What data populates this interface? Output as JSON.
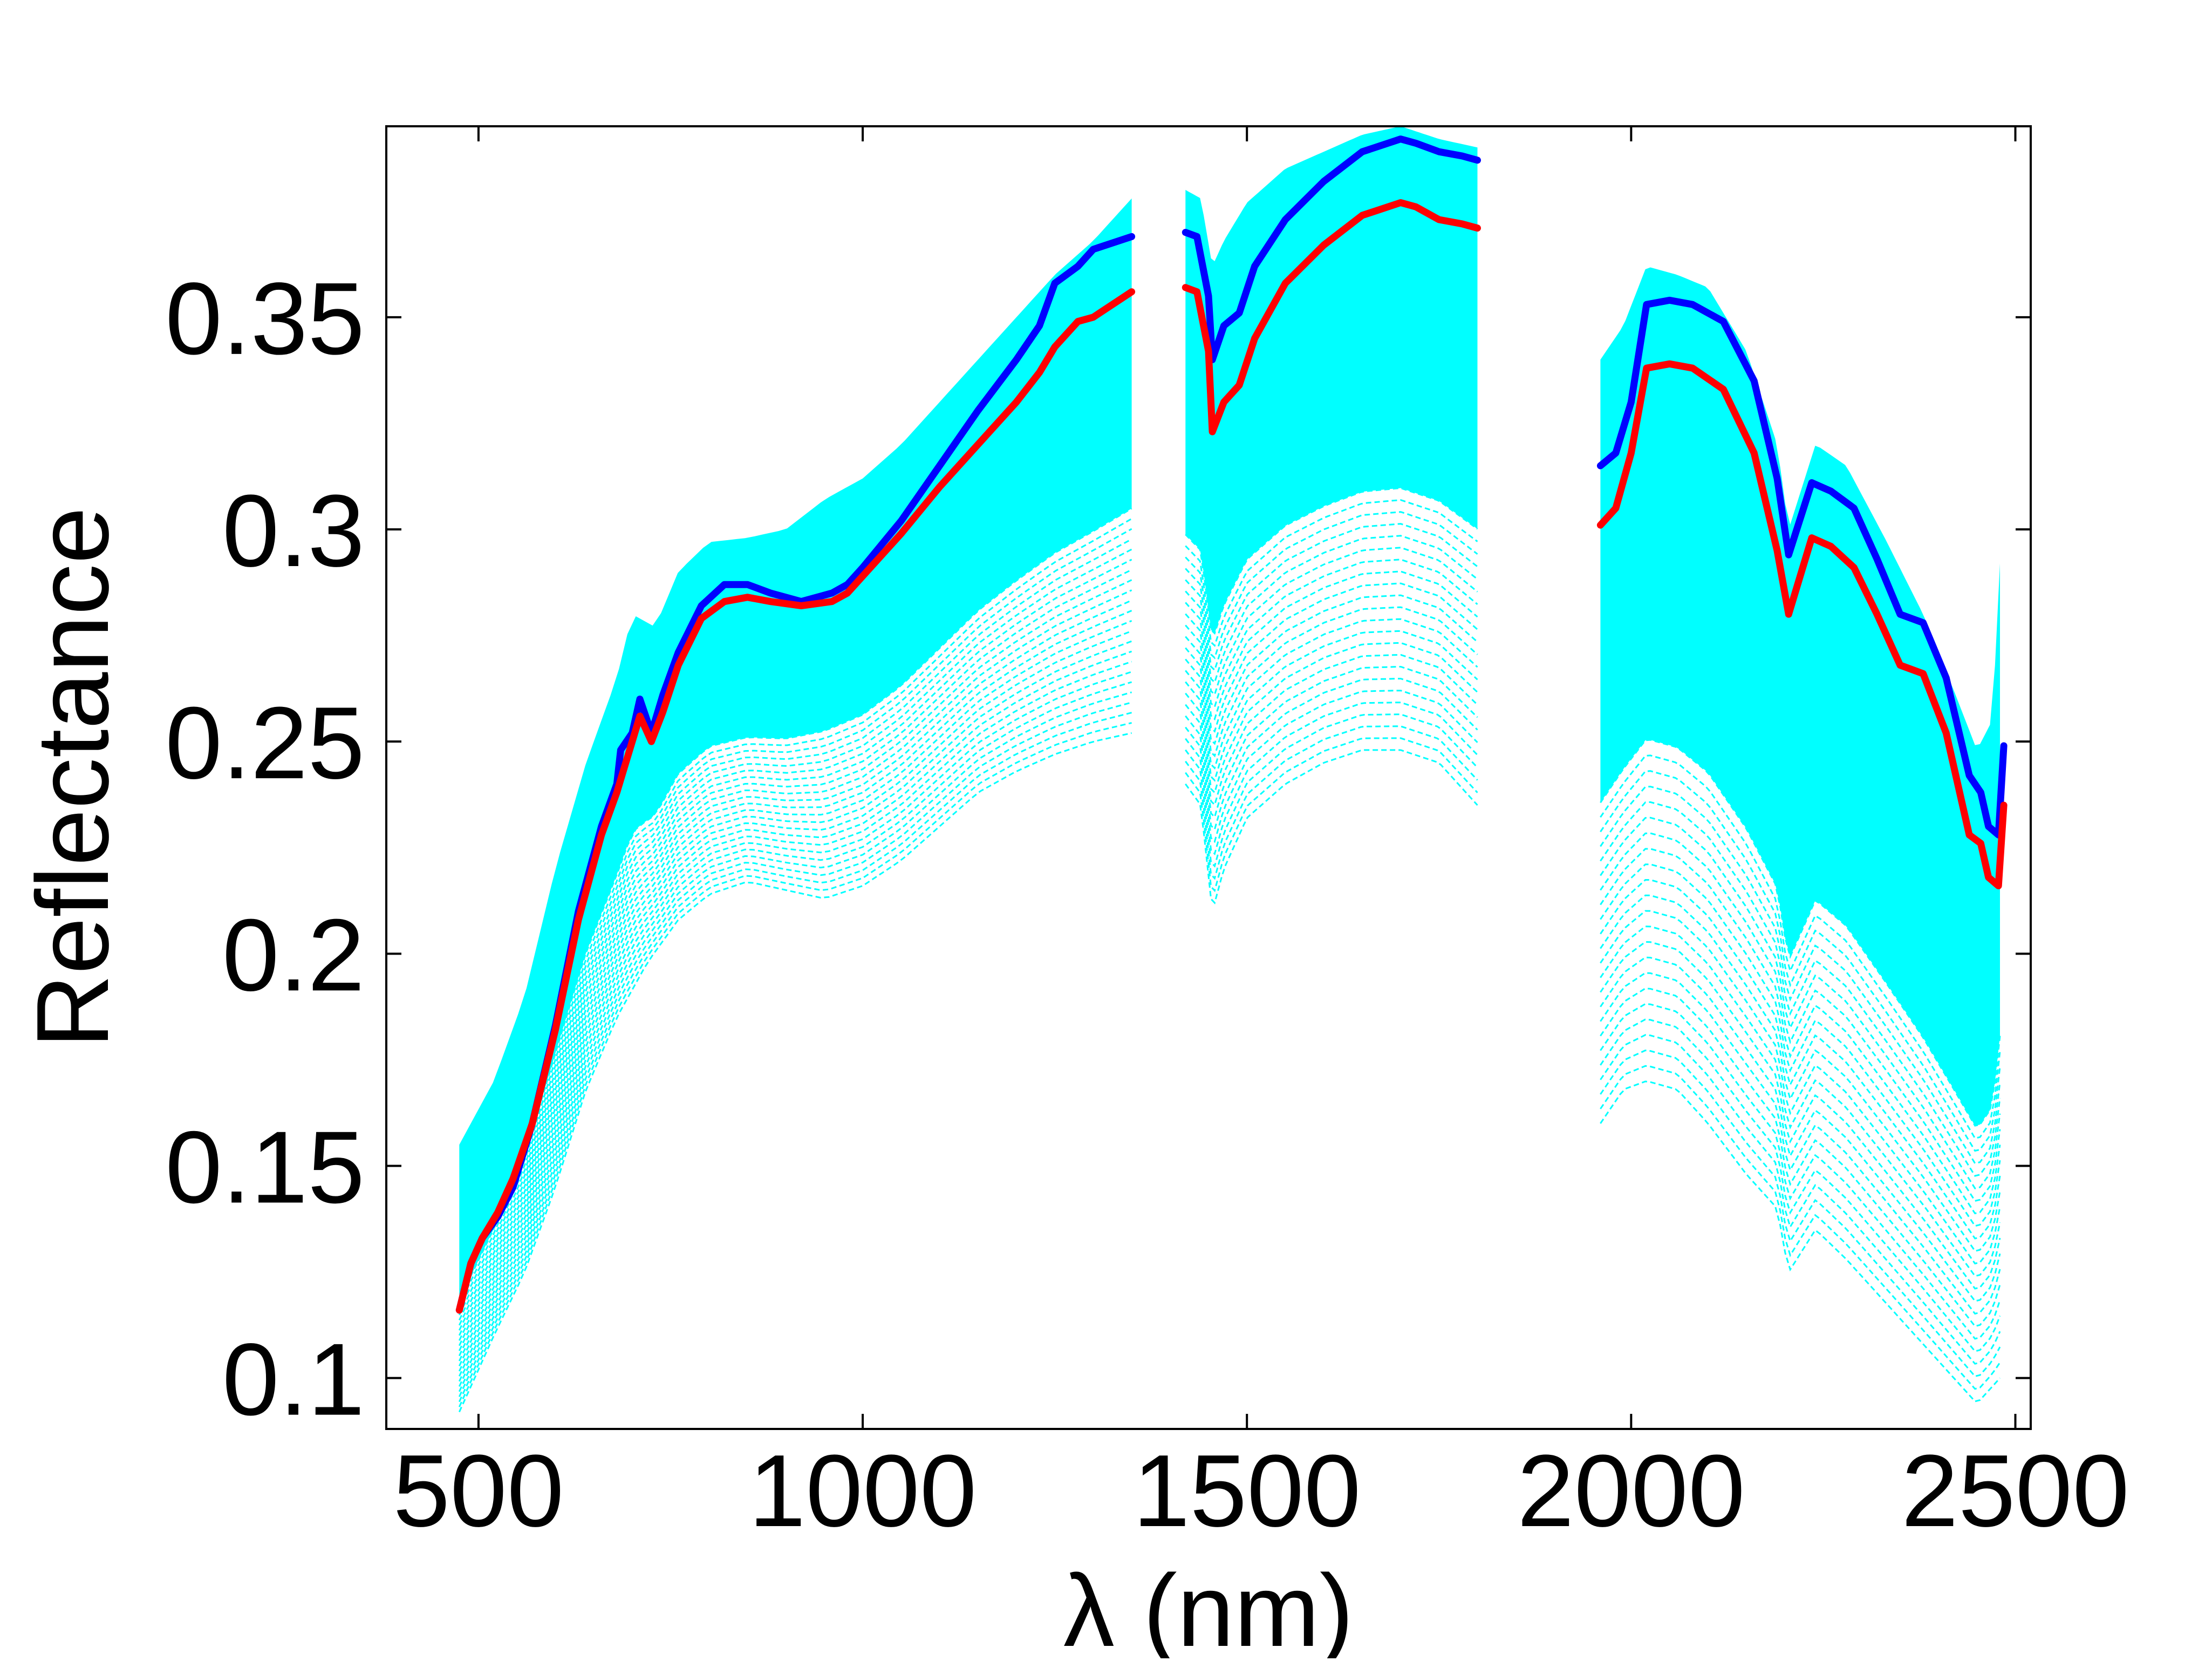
{
  "chart_data": {
    "type": "line",
    "title": "",
    "xlabel": "λ (nm)",
    "ylabel": "Reflectance",
    "xlim": [
      380,
      2520
    ],
    "ylim": [
      0.088,
      0.395
    ],
    "xticks": [
      500,
      1000,
      1500,
      2000,
      2500
    ],
    "xtick_labels": [
      "500",
      "1000",
      "1500",
      "2000",
      "2500"
    ],
    "yticks": [
      0.1,
      0.15,
      0.2,
      0.25,
      0.3,
      0.35
    ],
    "ytick_labels": [
      "0.1",
      "0.15",
      "0.2",
      "0.25",
      "0.3",
      "0.35"
    ],
    "grid": false,
    "legend": "none",
    "gaps_nm": [
      [
        1350,
        1420
      ],
      [
        1800,
        1960
      ]
    ],
    "envelope": {
      "color": "#00ffff",
      "style": "dashed",
      "upper": [
        [
          475,
          0.155
        ],
        [
          520,
          0.17
        ],
        [
          560,
          0.19
        ],
        [
          600,
          0.22
        ],
        [
          640,
          0.245
        ],
        [
          680,
          0.265
        ],
        [
          700,
          0.28
        ],
        [
          730,
          0.277
        ],
        [
          760,
          0.29
        ],
        [
          800,
          0.297
        ],
        [
          850,
          0.298
        ],
        [
          900,
          0.3
        ],
        [
          950,
          0.307
        ],
        [
          1000,
          0.312
        ],
        [
          1050,
          0.32
        ],
        [
          1100,
          0.33
        ],
        [
          1150,
          0.34
        ],
        [
          1200,
          0.35
        ],
        [
          1250,
          0.36
        ],
        [
          1300,
          0.368
        ],
        [
          1350,
          0.378
        ],
        [
          1420,
          0.38
        ],
        [
          1440,
          0.378
        ],
        [
          1455,
          0.362
        ],
        [
          1470,
          0.368
        ],
        [
          1500,
          0.377
        ],
        [
          1550,
          0.385
        ],
        [
          1600,
          0.389
        ],
        [
          1650,
          0.393
        ],
        [
          1700,
          0.395
        ],
        [
          1750,
          0.392
        ],
        [
          1800,
          0.39
        ],
        [
          1960,
          0.34
        ],
        [
          1990,
          0.348
        ],
        [
          2020,
          0.362
        ],
        [
          2060,
          0.36
        ],
        [
          2100,
          0.357
        ],
        [
          2150,
          0.342
        ],
        [
          2190,
          0.32
        ],
        [
          2205,
          0.3
        ],
        [
          2240,
          0.32
        ],
        [
          2280,
          0.315
        ],
        [
          2330,
          0.298
        ],
        [
          2380,
          0.28
        ],
        [
          2420,
          0.262
        ],
        [
          2450,
          0.248
        ],
        [
          2470,
          0.255
        ],
        [
          2480,
          0.292
        ]
      ],
      "lower": [
        [
          475,
          0.092
        ],
        [
          520,
          0.11
        ],
        [
          560,
          0.125
        ],
        [
          600,
          0.145
        ],
        [
          640,
          0.168
        ],
        [
          680,
          0.185
        ],
        [
          720,
          0.198
        ],
        [
          760,
          0.208
        ],
        [
          800,
          0.214
        ],
        [
          850,
          0.217
        ],
        [
          900,
          0.215
        ],
        [
          950,
          0.213
        ],
        [
          1000,
          0.216
        ],
        [
          1050,
          0.222
        ],
        [
          1100,
          0.23
        ],
        [
          1150,
          0.238
        ],
        [
          1200,
          0.243
        ],
        [
          1250,
          0.247
        ],
        [
          1300,
          0.25
        ],
        [
          1350,
          0.252
        ],
        [
          1420,
          0.24
        ],
        [
          1440,
          0.235
        ],
        [
          1455,
          0.21
        ],
        [
          1470,
          0.22
        ],
        [
          1500,
          0.232
        ],
        [
          1550,
          0.24
        ],
        [
          1600,
          0.245
        ],
        [
          1650,
          0.248
        ],
        [
          1700,
          0.248
        ],
        [
          1750,
          0.245
        ],
        [
          1800,
          0.235
        ],
        [
          1960,
          0.16
        ],
        [
          1990,
          0.168
        ],
        [
          2020,
          0.17
        ],
        [
          2060,
          0.168
        ],
        [
          2100,
          0.16
        ],
        [
          2150,
          0.148
        ],
        [
          2190,
          0.14
        ],
        [
          2205,
          0.125
        ],
        [
          2240,
          0.135
        ],
        [
          2280,
          0.128
        ],
        [
          2330,
          0.118
        ],
        [
          2380,
          0.108
        ],
        [
          2420,
          0.1
        ],
        [
          2450,
          0.094
        ],
        [
          2470,
          0.098
        ],
        [
          2480,
          0.1
        ]
      ]
    },
    "series": [
      {
        "color": "#0000ff",
        "segments": [
          [
            [
              475,
              0.116
            ],
            [
              490,
              0.127
            ],
            [
              505,
              0.133
            ],
            [
              525,
              0.138
            ],
            [
              545,
              0.145
            ],
            [
              570,
              0.16
            ],
            [
              600,
              0.183
            ],
            [
              630,
              0.21
            ],
            [
              660,
              0.23
            ],
            [
              680,
              0.24
            ],
            [
              685,
              0.248
            ],
            [
              700,
              0.252
            ],
            [
              710,
              0.26
            ],
            [
              725,
              0.252
            ],
            [
              740,
              0.261
            ],
            [
              760,
              0.271
            ],
            [
              790,
              0.282
            ],
            [
              820,
              0.287
            ],
            [
              850,
              0.287
            ],
            [
              880,
              0.285
            ],
            [
              920,
              0.283
            ],
            [
              960,
              0.285
            ],
            [
              980,
              0.287
            ],
            [
              1000,
              0.291
            ],
            [
              1050,
              0.302
            ],
            [
              1100,
              0.315
            ],
            [
              1150,
              0.328
            ],
            [
              1200,
              0.34
            ],
            [
              1230,
              0.348
            ],
            [
              1250,
              0.358
            ],
            [
              1280,
              0.362
            ],
            [
              1300,
              0.366
            ],
            [
              1350,
              0.369
            ]
          ],
          [
            [
              1420,
              0.37
            ],
            [
              1435,
              0.369
            ],
            [
              1450,
              0.355
            ],
            [
              1455,
              0.34
            ],
            [
              1470,
              0.348
            ],
            [
              1490,
              0.351
            ],
            [
              1510,
              0.362
            ],
            [
              1550,
              0.373
            ],
            [
              1600,
              0.382
            ],
            [
              1650,
              0.389
            ],
            [
              1700,
              0.392
            ],
            [
              1720,
              0.391
            ],
            [
              1750,
              0.389
            ],
            [
              1780,
              0.388
            ],
            [
              1800,
              0.387
            ]
          ],
          [
            [
              1960,
              0.315
            ],
            [
              1980,
              0.318
            ],
            [
              2000,
              0.33
            ],
            [
              2020,
              0.353
            ],
            [
              2050,
              0.354
            ],
            [
              2080,
              0.353
            ],
            [
              2120,
              0.349
            ],
            [
              2160,
              0.335
            ],
            [
              2190,
              0.312
            ],
            [
              2205,
              0.294
            ],
            [
              2235,
              0.311
            ],
            [
              2260,
              0.309
            ],
            [
              2290,
              0.305
            ],
            [
              2320,
              0.293
            ],
            [
              2350,
              0.28
            ],
            [
              2380,
              0.278
            ],
            [
              2410,
              0.265
            ],
            [
              2440,
              0.242
            ],
            [
              2455,
              0.238
            ],
            [
              2465,
              0.23
            ],
            [
              2478,
              0.228
            ],
            [
              2485,
              0.249
            ]
          ]
        ]
      },
      {
        "color": "#ff0000",
        "segments": [
          [
            [
              475,
              0.116
            ],
            [
              490,
              0.127
            ],
            [
              505,
              0.133
            ],
            [
              525,
              0.139
            ],
            [
              545,
              0.147
            ],
            [
              570,
              0.16
            ],
            [
              600,
              0.182
            ],
            [
              630,
              0.208
            ],
            [
              660,
              0.228
            ],
            [
              680,
              0.238
            ],
            [
              690,
              0.244
            ],
            [
              700,
              0.25
            ],
            [
              710,
              0.256
            ],
            [
              725,
              0.25
            ],
            [
              740,
              0.257
            ],
            [
              760,
              0.268
            ],
            [
              790,
              0.279
            ],
            [
              820,
              0.283
            ],
            [
              850,
              0.284
            ],
            [
              880,
              0.283
            ],
            [
              920,
              0.282
            ],
            [
              960,
              0.283
            ],
            [
              980,
              0.285
            ],
            [
              1000,
              0.289
            ],
            [
              1050,
              0.299
            ],
            [
              1100,
              0.31
            ],
            [
              1150,
              0.32
            ],
            [
              1200,
              0.33
            ],
            [
              1230,
              0.337
            ],
            [
              1250,
              0.343
            ],
            [
              1280,
              0.349
            ],
            [
              1300,
              0.35
            ],
            [
              1350,
              0.356
            ]
          ],
          [
            [
              1420,
              0.357
            ],
            [
              1435,
              0.356
            ],
            [
              1450,
              0.342
            ],
            [
              1455,
              0.323
            ],
            [
              1470,
              0.33
            ],
            [
              1490,
              0.334
            ],
            [
              1510,
              0.345
            ],
            [
              1550,
              0.358
            ],
            [
              1600,
              0.367
            ],
            [
              1650,
              0.374
            ],
            [
              1700,
              0.377
            ],
            [
              1720,
              0.376
            ],
            [
              1750,
              0.373
            ],
            [
              1780,
              0.372
            ],
            [
              1800,
              0.371
            ]
          ],
          [
            [
              1960,
              0.301
            ],
            [
              1980,
              0.305
            ],
            [
              2000,
              0.318
            ],
            [
              2020,
              0.338
            ],
            [
              2050,
              0.339
            ],
            [
              2080,
              0.338
            ],
            [
              2120,
              0.333
            ],
            [
              2160,
              0.318
            ],
            [
              2190,
              0.295
            ],
            [
              2205,
              0.28
            ],
            [
              2235,
              0.298
            ],
            [
              2260,
              0.296
            ],
            [
              2290,
              0.291
            ],
            [
              2320,
              0.28
            ],
            [
              2350,
              0.268
            ],
            [
              2380,
              0.266
            ],
            [
              2410,
              0.252
            ],
            [
              2440,
              0.228
            ],
            [
              2455,
              0.226
            ],
            [
              2465,
              0.218
            ],
            [
              2478,
              0.216
            ],
            [
              2485,
              0.235
            ]
          ]
        ]
      }
    ]
  }
}
